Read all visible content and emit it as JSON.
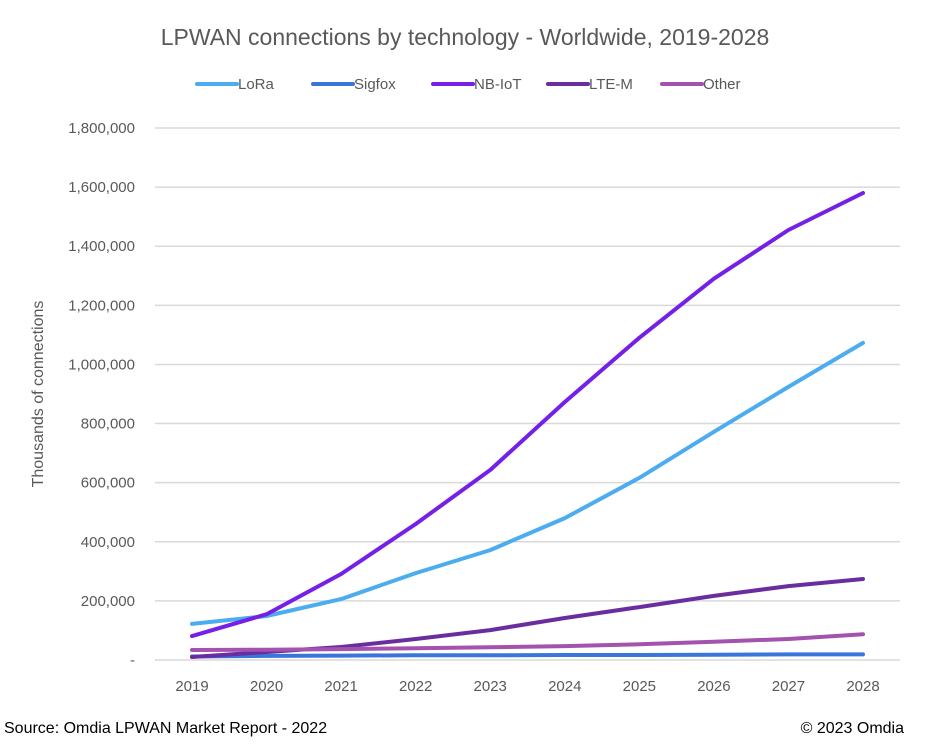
{
  "chart_data": {
    "type": "line",
    "title": "LPWAN connections by technology - Worldwide, 2019-2028",
    "xlabel": "",
    "ylabel": "Thousands of connections",
    "ylim": [
      0,
      1800000
    ],
    "yticks": [
      0,
      200000,
      400000,
      600000,
      800000,
      1000000,
      1200000,
      1400000,
      1600000,
      1800000
    ],
    "ytick_labels": [
      "-",
      "200,000",
      "400,000",
      "600,000",
      "800,000",
      "1,000,000",
      "1,200,000",
      "1,400,000",
      "1,600,000",
      "1,800,000"
    ],
    "grid": true,
    "legend_position": "top",
    "categories": [
      "2019",
      "2020",
      "2021",
      "2022",
      "2023",
      "2024",
      "2025",
      "2026",
      "2027",
      "2028"
    ],
    "series": [
      {
        "name": "LoRa",
        "color": "#4BACF0",
        "values": [
          122000,
          149000,
          206000,
          294000,
          372000,
          480000,
          616000,
          772000,
          924000,
          1073000
        ]
      },
      {
        "name": "Sigfox",
        "color": "#3A75DC",
        "values": [
          12000,
          14000,
          15000,
          16000,
          16000,
          17000,
          17000,
          18000,
          19000,
          19000
        ]
      },
      {
        "name": "NB-IoT",
        "color": "#7420E6",
        "values": [
          81000,
          155000,
          291000,
          460000,
          643000,
          873000,
          1090000,
          1290000,
          1455000,
          1580000
        ]
      },
      {
        "name": "LTE-M",
        "color": "#6A2DA0",
        "values": [
          10000,
          27000,
          44000,
          71000,
          101000,
          142000,
          179000,
          217000,
          250000,
          274000
        ]
      },
      {
        "name": "Other",
        "color": "#A352AE",
        "values": [
          34000,
          35000,
          37000,
          40000,
          43000,
          47000,
          53000,
          62000,
          71000,
          87000
        ]
      }
    ]
  },
  "footer": {
    "source": "Source: Omdia LPWAN Market Report - 2022",
    "copyright": "© 2023 Omdia"
  }
}
